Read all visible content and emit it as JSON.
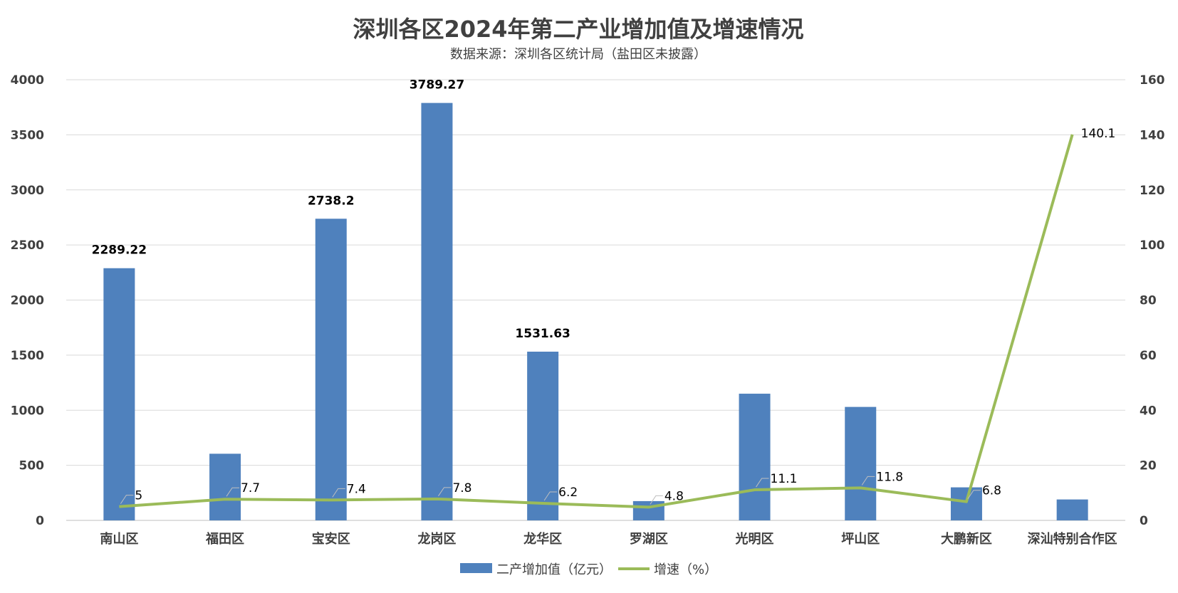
{
  "chart_data": {
    "type": "bar",
    "title": "深圳各区2024年第二产业增加值及增速情况",
    "subtitle": "数据来源：深圳各区统计局（盐田区未披露）",
    "categories": [
      "南山区",
      "福田区",
      "宝安区",
      "龙岗区",
      "龙华区",
      "罗湖区",
      "光明区",
      "坪山区",
      "大鹏新区",
      "深汕特别合作区"
    ],
    "series": [
      {
        "name": "二产增加值（亿元）",
        "type": "bar",
        "axis": "left",
        "color": "#4f81bd",
        "values": [
          2289.22,
          605,
          2738.2,
          3789.27,
          1531.63,
          175,
          1150,
          1030,
          300,
          190
        ],
        "labels": [
          "2289.22",
          "",
          "2738.2",
          "3789.27",
          "1531.63",
          "",
          "",
          "",
          "",
          ""
        ]
      },
      {
        "name": "增速（%）",
        "type": "line",
        "axis": "right",
        "color": "#9bbb59",
        "values": [
          5,
          7.7,
          7.4,
          7.8,
          6.2,
          4.8,
          11.1,
          11.8,
          6.8,
          140.1
        ],
        "labels": [
          "5",
          "7.7",
          "7.4",
          "7.8",
          "6.2",
          "4.8",
          "11.1",
          "11.8",
          "6.8",
          "140.1"
        ]
      }
    ],
    "y_left": {
      "min": 0,
      "max": 4000,
      "ticks": [
        "0",
        "500",
        "1000",
        "1500",
        "2000",
        "2500",
        "3000",
        "3500",
        "4000"
      ]
    },
    "y_right": {
      "min": 0,
      "max": 160,
      "ticks": [
        "0",
        "20",
        "40",
        "60",
        "80",
        "100",
        "120",
        "140",
        "160"
      ]
    },
    "grid": true,
    "legend": "bottom"
  }
}
